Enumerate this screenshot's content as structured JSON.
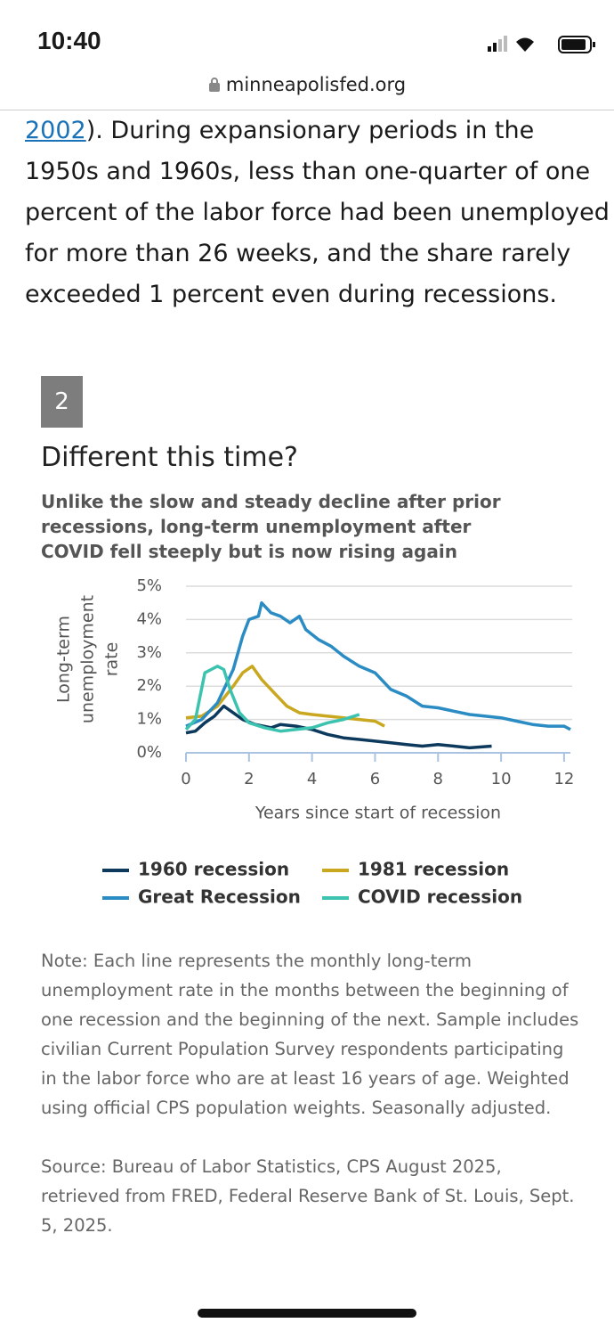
{
  "status_bar": {
    "time": "10:40",
    "url": "minneapolisfed.org"
  },
  "article": {
    "link": "2002",
    "lines": [
      ").  During expansionary periods in the",
      "1950s and 1960s, less than one-quarter of one",
      "percent of the labor force had been unemployed",
      "for more than 26 weeks, and the share rarely",
      "exceeded 1 percent even during recessions."
    ]
  },
  "figure": {
    "number": "2",
    "title": "Different this time?",
    "subtitle": "Unlike the slow and steady decline after prior recessions, long-term unemployment after COVID fell steeply but is now rising again",
    "note": "Note: Each line represents the monthly long-term unemployment rate in the months between the beginning of one recession and the beginning of the next. Sample includes civilian Current Population Survey respondents participating in the labor force who are at least 16 years of age. Weighted using official CPS population weights. Seasonally adjusted.",
    "source": "Source: Bureau of Labor Statistics, CPS August 2025, retrieved from FRED, Federal Reserve Bank of St. Louis, Sept. 5, 2025."
  },
  "chart_data": {
    "type": "line",
    "y_label_lines": [
      "Long-term",
      "unemployment",
      "rate"
    ],
    "x_label": "Years since start of recession",
    "xlim": [
      0,
      12.2
    ],
    "xticks": [
      0,
      2,
      4,
      6,
      8,
      10,
      12
    ],
    "ylim": [
      0,
      5
    ],
    "yticks": [
      {
        "value": 0,
        "label": "0%"
      },
      {
        "value": 1,
        "label": "1%"
      },
      {
        "value": 2,
        "label": "2%"
      },
      {
        "value": 3,
        "label": "3%"
      },
      {
        "value": 4,
        "label": "4%"
      },
      {
        "value": 5,
        "label": "5%"
      }
    ],
    "grid": true,
    "legend": "bottom",
    "series": [
      {
        "name": "1960 recession",
        "color": "#0d3a5c",
        "x": [
          0,
          0.3,
          0.6,
          0.9,
          1.2,
          1.5,
          1.8,
          2.2,
          2.7,
          3,
          3.5,
          4,
          4.5,
          5,
          5.5,
          6,
          6.5,
          7,
          7.5,
          8,
          8.5,
          9,
          9.7
        ],
        "values": [
          0.6,
          0.65,
          0.9,
          1.1,
          1.4,
          1.2,
          1,
          0.85,
          0.75,
          0.85,
          0.8,
          0.7,
          0.55,
          0.45,
          0.4,
          0.35,
          0.3,
          0.25,
          0.2,
          0.25,
          0.2,
          0.15,
          0.2
        ]
      },
      {
        "name": "1981 recession",
        "color": "#c9a820",
        "x": [
          0,
          0.5,
          1,
          1.5,
          1.8,
          2.1,
          2.4,
          2.8,
          3.2,
          3.6,
          4,
          4.5,
          5,
          5.5,
          6,
          6.3
        ],
        "values": [
          1.05,
          1.1,
          1.4,
          2,
          2.4,
          2.6,
          2.2,
          1.8,
          1.4,
          1.2,
          1.15,
          1.1,
          1.05,
          1,
          0.95,
          0.8
        ]
      },
      {
        "name": "Great Recession",
        "color": "#2b8cc4",
        "x": [
          0,
          0.5,
          1,
          1.5,
          1.8,
          2,
          2.3,
          2.4,
          2.7,
          3,
          3.3,
          3.6,
          3.8,
          4.2,
          4.6,
          5,
          5.5,
          6,
          6.5,
          7,
          7.5,
          8,
          8.5,
          9,
          9.5,
          10,
          10.5,
          11,
          11.5,
          12,
          12.2
        ],
        "values": [
          0.8,
          1,
          1.5,
          2.5,
          3.5,
          4,
          4.1,
          4.5,
          4.2,
          4.1,
          3.9,
          4.1,
          3.7,
          3.4,
          3.2,
          2.9,
          2.6,
          2.4,
          1.9,
          1.7,
          1.4,
          1.35,
          1.25,
          1.15,
          1.1,
          1.05,
          0.95,
          0.85,
          0.8,
          0.8,
          0.7
        ]
      },
      {
        "name": "COVID recession",
        "color": "#3cc3b0",
        "x": [
          0,
          0.3,
          0.6,
          0.8,
          1,
          1.2,
          1.4,
          1.7,
          2,
          2.5,
          3,
          3.5,
          4,
          4.5,
          5,
          5.5
        ],
        "values": [
          0.7,
          1,
          2.4,
          2.5,
          2.6,
          2.5,
          1.9,
          1.2,
          0.9,
          0.75,
          0.65,
          0.7,
          0.75,
          0.9,
          1,
          1.15
        ]
      }
    ]
  }
}
